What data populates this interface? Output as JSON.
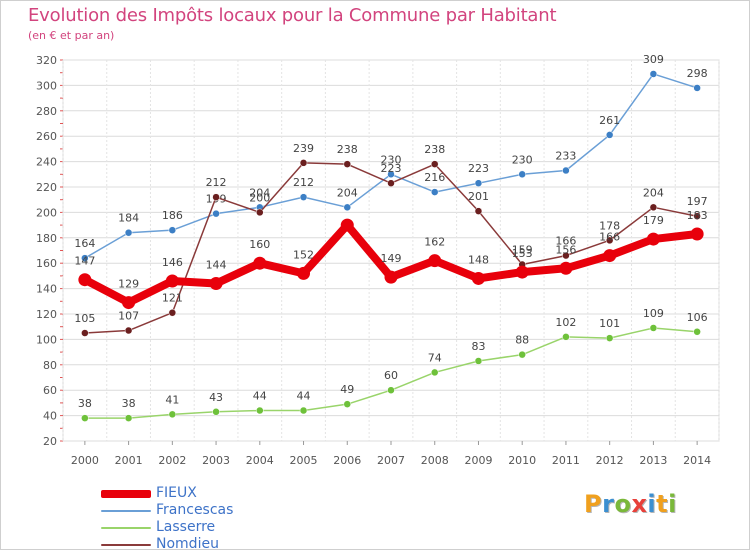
{
  "header": {
    "title": "Evolution des Impôts locaux pour la Commune par Habitant",
    "subtitle": "(en € et par an)"
  },
  "chart_data": {
    "type": "line",
    "title": "Evolution des Impôts locaux pour la Commune par Habitant",
    "subtitle": "(en € et par an)",
    "xlabel": "",
    "ylabel": "",
    "x": [
      "2000",
      "2001",
      "2002",
      "2003",
      "2004",
      "2005",
      "2006",
      "2007",
      "2008",
      "2009",
      "2010",
      "2011",
      "2012",
      "2013",
      "2014"
    ],
    "ylim": [
      20,
      320
    ],
    "yticks": [
      20,
      40,
      60,
      80,
      100,
      120,
      140,
      160,
      180,
      200,
      220,
      240,
      260,
      280,
      300,
      320
    ],
    "grid": true,
    "legend_position": "bottom-left",
    "series": [
      {
        "name": "Lasserre",
        "color": "#99d46a",
        "marker": "#6ec13a",
        "width": 1.5,
        "radius": 3.5,
        "values": [
          38,
          38,
          41,
          43,
          44,
          44,
          49,
          60,
          74,
          83,
          88,
          102,
          101,
          109,
          106
        ],
        "labels": [
          "38",
          "38",
          "41",
          "43",
          "44",
          "44",
          "49",
          "60",
          "74",
          "83",
          "88",
          "102",
          "101",
          "109",
          "106"
        ]
      },
      {
        "name": "Francescas",
        "color": "#6a9fd6",
        "marker": "#3c7fc5",
        "width": 1.5,
        "radius": 3.5,
        "values": [
          164,
          184,
          186,
          199,
          204,
          212,
          204,
          230,
          216,
          223,
          230,
          233,
          261,
          309,
          298
        ],
        "labels": [
          "164",
          "184",
          "186",
          "199",
          "204",
          "212",
          "204",
          "230",
          "216",
          "223",
          "230",
          "233",
          "261",
          "309",
          "298"
        ]
      },
      {
        "name": "Nomdieu",
        "color": "#8a3a3a",
        "marker": "#6b1f1f",
        "width": 1.5,
        "radius": 3.5,
        "values": [
          105,
          107,
          121,
          212,
          200,
          239,
          238,
          223,
          238,
          201,
          159,
          166,
          178,
          204,
          197
        ],
        "labels": [
          "105",
          "107",
          "121",
          "212",
          "200",
          "239",
          "238",
          "223",
          "238",
          "201",
          "159",
          "166",
          "178",
          "204",
          "197"
        ]
      },
      {
        "name": "FIEUX",
        "color": "#e8000b",
        "marker": "#e8000b",
        "width": 8,
        "radius": 6.5,
        "values": [
          147,
          129,
          146,
          144,
          160,
          152,
          190,
          149,
          162,
          148,
          153,
          156,
          166,
          179,
          183
        ],
        "labels": [
          "147",
          "129",
          "146",
          "144",
          "160",
          "152",
          "",
          "149",
          "162",
          "148",
          "153",
          "156",
          "166",
          "179",
          "183"
        ]
      }
    ],
    "legend": [
      "FIEUX",
      "Francescas",
      "Lasserre",
      "Nomdieu"
    ]
  },
  "legend": {
    "items": [
      {
        "label": "FIEUX",
        "color": "#e8000b",
        "thickness": 8
      },
      {
        "label": "Francescas",
        "color": "#6a9fd6",
        "thickness": 2
      },
      {
        "label": "Lasserre",
        "color": "#99d46a",
        "thickness": 2
      },
      {
        "label": "Nomdieu",
        "color": "#8a3a3a",
        "thickness": 2
      }
    ]
  },
  "logo": {
    "text": "Proxiti",
    "letter_colors": [
      "#f0a01e",
      "#3c8fd0",
      "#7ab83a",
      "#e8403a",
      "#3c8fd0",
      "#f0a01e",
      "#7ab83a"
    ]
  }
}
